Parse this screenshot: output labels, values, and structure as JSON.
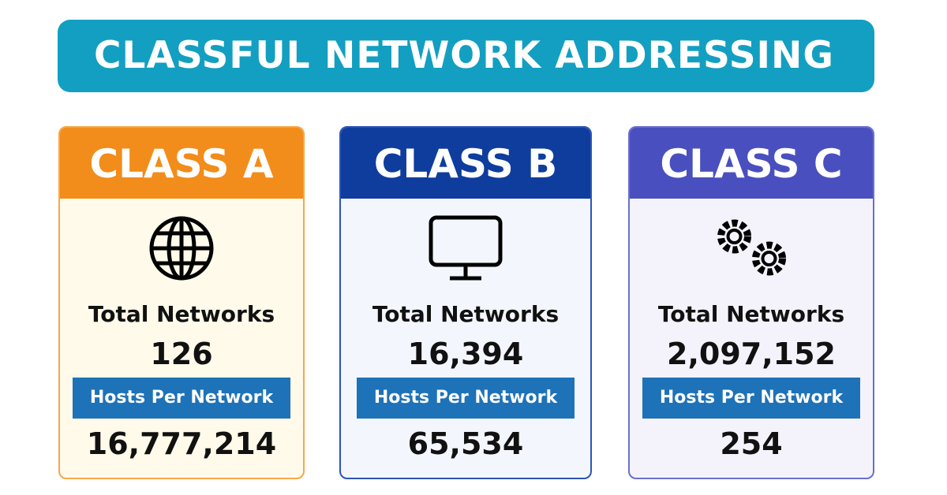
{
  "title": "CLASSFUL NETWORK ADDRESSING",
  "cards": [
    {
      "title": "CLASS A",
      "networks_label": "Total Networks",
      "networks": "126",
      "hosts_label": "Hosts Per Network",
      "hosts": "16,777,214"
    },
    {
      "title": "CLASS B",
      "networks_label": "Total Networks",
      "networks": "16,394",
      "hosts_label": "Hosts Per Network",
      "hosts": "65,534"
    },
    {
      "title": "CLASS C",
      "networks_label": "Total Networks",
      "networks": "2,097,152",
      "hosts_label": "Hosts Per Network",
      "hosts": "254"
    }
  ]
}
